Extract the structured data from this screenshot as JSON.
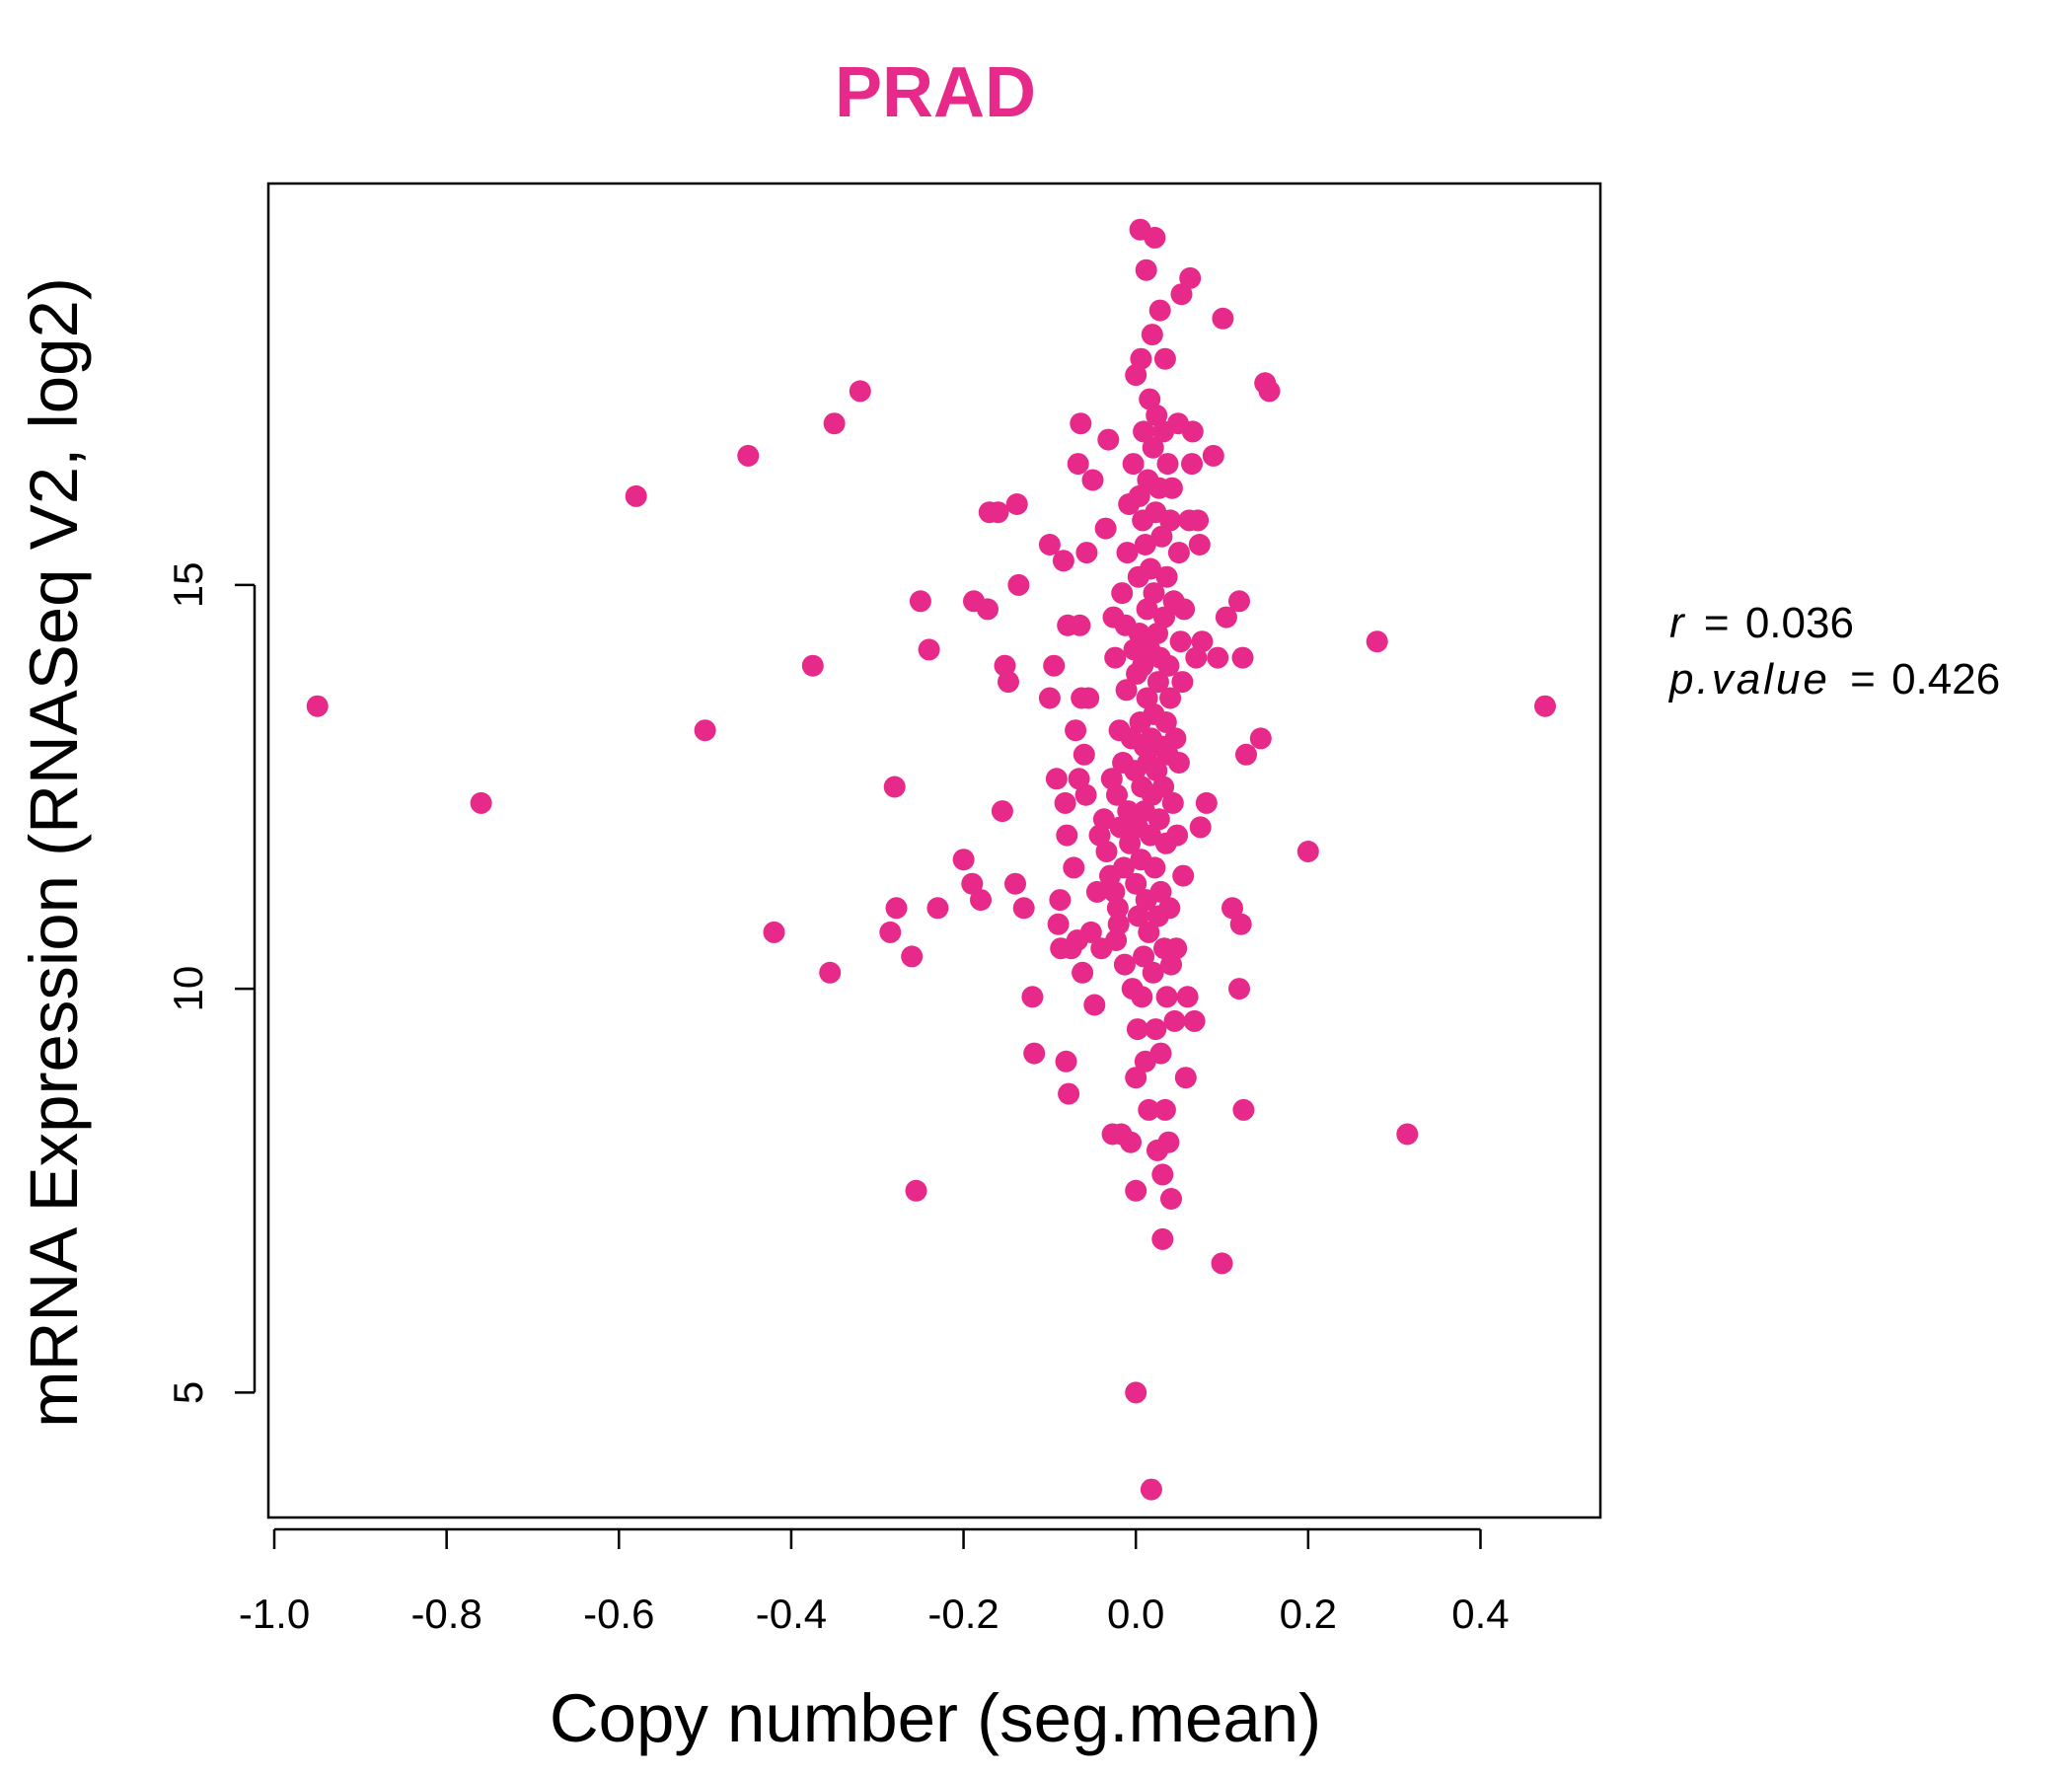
{
  "colors": {
    "point": "#e7298a",
    "title": "#e7298a",
    "axis": "#000000",
    "background": "#ffffff"
  },
  "stats": {
    "r_symbol": "r",
    "r_value": "0.036",
    "p_symbol": "p.value",
    "p_value": "0.426",
    "equals": "="
  },
  "chart_data": {
    "type": "scatter",
    "title": "PRAD",
    "xlabel": "Copy number (seg.mean)",
    "ylabel": "mRNA Expression (RNASeq V2, log2)",
    "xlim": [
      -1.0,
      0.53
    ],
    "ylim": [
      3.6,
      19.8
    ],
    "xticks": [
      -1.0,
      -0.8,
      -0.6,
      -0.4,
      -0.2,
      0.0,
      0.2,
      0.4
    ],
    "xtick_labels": [
      "-1.0",
      "-0.8",
      "-0.6",
      "-0.4",
      "-0.2",
      "0.0",
      "0.2",
      "0.4"
    ],
    "yticks": [
      5,
      10,
      15
    ],
    "ytick_labels": [
      "5",
      "10",
      "15"
    ],
    "grid": false,
    "legend": "none",
    "series": [
      {
        "points": [
          [
            -0.95,
            13.5
          ],
          [
            -0.76,
            12.3
          ],
          [
            -0.58,
            16.1
          ],
          [
            -0.5,
            13.2
          ],
          [
            -0.45,
            16.6
          ],
          [
            -0.42,
            10.7
          ],
          [
            -0.375,
            14.0
          ],
          [
            -0.355,
            10.2
          ],
          [
            -0.35,
            17.0
          ],
          [
            -0.32,
            17.4
          ],
          [
            -0.285,
            10.7
          ],
          [
            -0.28,
            12.5
          ],
          [
            -0.278,
            11.0
          ],
          [
            -0.26,
            10.4
          ],
          [
            -0.255,
            7.5
          ],
          [
            -0.25,
            14.8
          ],
          [
            -0.24,
            14.2
          ],
          [
            -0.23,
            11.0
          ],
          [
            -0.2,
            11.6
          ],
          [
            -0.19,
            11.3
          ],
          [
            -0.188,
            14.8
          ],
          [
            -0.18,
            11.1
          ],
          [
            -0.172,
            14.7
          ],
          [
            -0.17,
            15.9
          ],
          [
            -0.16,
            15.9
          ],
          [
            -0.155,
            12.2
          ],
          [
            -0.152,
            14.0
          ],
          [
            -0.148,
            13.8
          ],
          [
            -0.14,
            11.3
          ],
          [
            -0.138,
            16.0
          ],
          [
            -0.136,
            15.0
          ],
          [
            -0.13,
            11.0
          ],
          [
            -0.12,
            9.9
          ],
          [
            -0.118,
            9.2
          ],
          [
            -0.1,
            15.5
          ],
          [
            -0.1,
            13.6
          ],
          [
            -0.095,
            14.0
          ],
          [
            -0.092,
            12.6
          ],
          [
            -0.09,
            10.8
          ],
          [
            -0.088,
            11.1
          ],
          [
            -0.087,
            10.5
          ],
          [
            -0.084,
            15.3
          ],
          [
            -0.082,
            12.3
          ],
          [
            -0.081,
            9.1
          ],
          [
            -0.08,
            11.9
          ],
          [
            -0.079,
            14.5
          ],
          [
            -0.078,
            8.7
          ],
          [
            -0.075,
            10.5
          ],
          [
            -0.072,
            11.5
          ],
          [
            -0.07,
            13.2
          ],
          [
            -0.068,
            10.6
          ],
          [
            -0.067,
            16.5
          ],
          [
            -0.066,
            12.6
          ],
          [
            -0.065,
            14.5
          ],
          [
            -0.064,
            17.0
          ],
          [
            -0.063,
            13.6
          ],
          [
            -0.062,
            10.2
          ],
          [
            -0.06,
            12.9
          ],
          [
            -0.058,
            12.4
          ],
          [
            -0.057,
            15.4
          ],
          [
            -0.055,
            13.6
          ],
          [
            -0.052,
            10.7
          ],
          [
            -0.05,
            16.3
          ],
          [
            -0.048,
            9.8
          ],
          [
            -0.045,
            11.2
          ],
          [
            -0.042,
            11.9
          ],
          [
            -0.04,
            10.5
          ],
          [
            -0.037,
            12.1
          ],
          [
            -0.035,
            15.7
          ],
          [
            -0.034,
            11.7
          ],
          [
            -0.032,
            16.8
          ],
          [
            -0.03,
            11.4
          ],
          [
            -0.028,
            12.6
          ],
          [
            -0.027,
            8.2
          ],
          [
            -0.026,
            14.6
          ],
          [
            -0.025,
            11.2
          ],
          [
            -0.024,
            14.1
          ],
          [
            -0.023,
            10.6
          ],
          [
            -0.022,
            12.4
          ],
          [
            -0.021,
            11.0
          ],
          [
            -0.02,
            10.8
          ],
          [
            -0.019,
            13.2
          ],
          [
            -0.018,
            12.0
          ],
          [
            -0.017,
            8.2
          ],
          [
            -0.016,
            14.9
          ],
          [
            -0.015,
            12.8
          ],
          [
            -0.014,
            11.5
          ],
          [
            -0.013,
            10.3
          ],
          [
            -0.012,
            14.5
          ],
          [
            -0.011,
            13.7
          ],
          [
            -0.01,
            15.4
          ],
          [
            -0.009,
            12.2
          ],
          [
            -0.008,
            16.0
          ],
          [
            -0.007,
            11.8
          ],
          [
            -0.006,
            8.1
          ],
          [
            -0.005,
            13.1
          ],
          [
            -0.004,
            10.0
          ],
          [
            -0.003,
            16.5
          ],
          [
            -0.002,
            14.2
          ],
          [
            -0.001,
            12.7
          ],
          [
            0.0,
            17.6
          ],
          [
            0.0,
            11.3
          ],
          [
            0.0,
            8.9
          ],
          [
            0.0,
            7.5
          ],
          [
            0.0,
            5.0
          ],
          [
            0.001,
            13.9
          ],
          [
            0.002,
            9.5
          ],
          [
            0.002,
            12.0
          ],
          [
            0.003,
            15.1
          ],
          [
            0.003,
            10.9
          ],
          [
            0.004,
            14.4
          ],
          [
            0.004,
            16.1
          ],
          [
            0.005,
            19.4
          ],
          [
            0.005,
            13.3
          ],
          [
            0.006,
            11.6
          ],
          [
            0.006,
            17.8
          ],
          [
            0.007,
            12.5
          ],
          [
            0.007,
            9.9
          ],
          [
            0.008,
            15.8
          ],
          [
            0.008,
            14.0
          ],
          [
            0.009,
            16.9
          ],
          [
            0.009,
            10.4
          ],
          [
            0.01,
            13.0
          ],
          [
            0.01,
            12.2
          ],
          [
            0.011,
            15.5
          ],
          [
            0.011,
            9.1
          ],
          [
            0.012,
            18.9
          ],
          [
            0.012,
            11.1
          ],
          [
            0.013,
            14.7
          ],
          [
            0.013,
            13.6
          ],
          [
            0.014,
            16.3
          ],
          [
            0.014,
            12.8
          ],
          [
            0.015,
            10.7
          ],
          [
            0.015,
            8.5
          ],
          [
            0.016,
            17.3
          ],
          [
            0.016,
            14.2
          ],
          [
            0.017,
            11.9
          ],
          [
            0.017,
            15.2
          ],
          [
            0.018,
            13.1
          ],
          [
            0.018,
            3.8
          ],
          [
            0.019,
            18.1
          ],
          [
            0.019,
            12.4
          ],
          [
            0.02,
            16.7
          ],
          [
            0.02,
            10.2
          ],
          [
            0.021,
            14.9
          ],
          [
            0.021,
            13.4
          ],
          [
            0.022,
            19.3
          ],
          [
            0.022,
            11.5
          ],
          [
            0.023,
            9.5
          ],
          [
            0.023,
            15.9
          ],
          [
            0.024,
            12.7
          ],
          [
            0.024,
            17.1
          ],
          [
            0.025,
            14.4
          ],
          [
            0.025,
            8.0
          ],
          [
            0.026,
            13.8
          ],
          [
            0.026,
            10.9
          ],
          [
            0.027,
            16.2
          ],
          [
            0.027,
            12.1
          ],
          [
            0.028,
            18.4
          ],
          [
            0.028,
            14.1
          ],
          [
            0.029,
            11.2
          ],
          [
            0.029,
            9.2
          ],
          [
            0.03,
            15.6
          ],
          [
            0.03,
            13.0
          ],
          [
            0.031,
            6.9
          ],
          [
            0.031,
            7.7
          ],
          [
            0.032,
            16.9
          ],
          [
            0.032,
            12.5
          ],
          [
            0.033,
            10.5
          ],
          [
            0.033,
            14.6
          ],
          [
            0.034,
            17.8
          ],
          [
            0.034,
            8.5
          ],
          [
            0.035,
            13.3
          ],
          [
            0.035,
            11.8
          ],
          [
            0.036,
            15.1
          ],
          [
            0.036,
            9.9
          ],
          [
            0.037,
            16.5
          ],
          [
            0.037,
            12.9
          ],
          [
            0.038,
            14.0
          ],
          [
            0.038,
            8.1
          ],
          [
            0.039,
            11.0
          ],
          [
            0.04,
            15.8
          ],
          [
            0.04,
            13.6
          ],
          [
            0.041,
            10.3
          ],
          [
            0.041,
            7.4
          ],
          [
            0.042,
            16.2
          ],
          [
            0.043,
            12.3
          ],
          [
            0.044,
            14.8
          ],
          [
            0.045,
            9.6
          ],
          [
            0.046,
            13.1
          ],
          [
            0.047,
            10.5
          ],
          [
            0.048,
            11.9
          ],
          [
            0.049,
            17.0
          ],
          [
            0.05,
            15.4
          ],
          [
            0.05,
            12.8
          ],
          [
            0.052,
            14.3
          ],
          [
            0.053,
            18.6
          ],
          [
            0.054,
            13.8
          ],
          [
            0.055,
            11.4
          ],
          [
            0.056,
            14.7
          ],
          [
            0.058,
            8.9
          ],
          [
            0.06,
            9.9
          ],
          [
            0.062,
            15.8
          ],
          [
            0.063,
            18.8
          ],
          [
            0.065,
            16.5
          ],
          [
            0.066,
            16.9
          ],
          [
            0.068,
            9.6
          ],
          [
            0.07,
            14.1
          ],
          [
            0.072,
            15.8
          ],
          [
            0.074,
            15.5
          ],
          [
            0.075,
            12.0
          ],
          [
            0.077,
            14.3
          ],
          [
            0.082,
            12.3
          ],
          [
            0.09,
            16.6
          ],
          [
            0.095,
            14.1
          ],
          [
            0.1,
            6.6
          ],
          [
            0.101,
            18.3
          ],
          [
            0.105,
            14.6
          ],
          [
            0.112,
            11.0
          ],
          [
            0.12,
            14.8
          ],
          [
            0.12,
            10.0
          ],
          [
            0.122,
            10.8
          ],
          [
            0.124,
            14.1
          ],
          [
            0.125,
            8.5
          ],
          [
            0.128,
            12.9
          ],
          [
            0.145,
            13.1
          ],
          [
            0.15,
            17.5
          ],
          [
            0.155,
            17.4
          ],
          [
            0.2,
            11.7
          ],
          [
            0.28,
            14.3
          ],
          [
            0.315,
            8.2
          ],
          [
            0.475,
            13.5
          ]
        ]
      }
    ]
  }
}
